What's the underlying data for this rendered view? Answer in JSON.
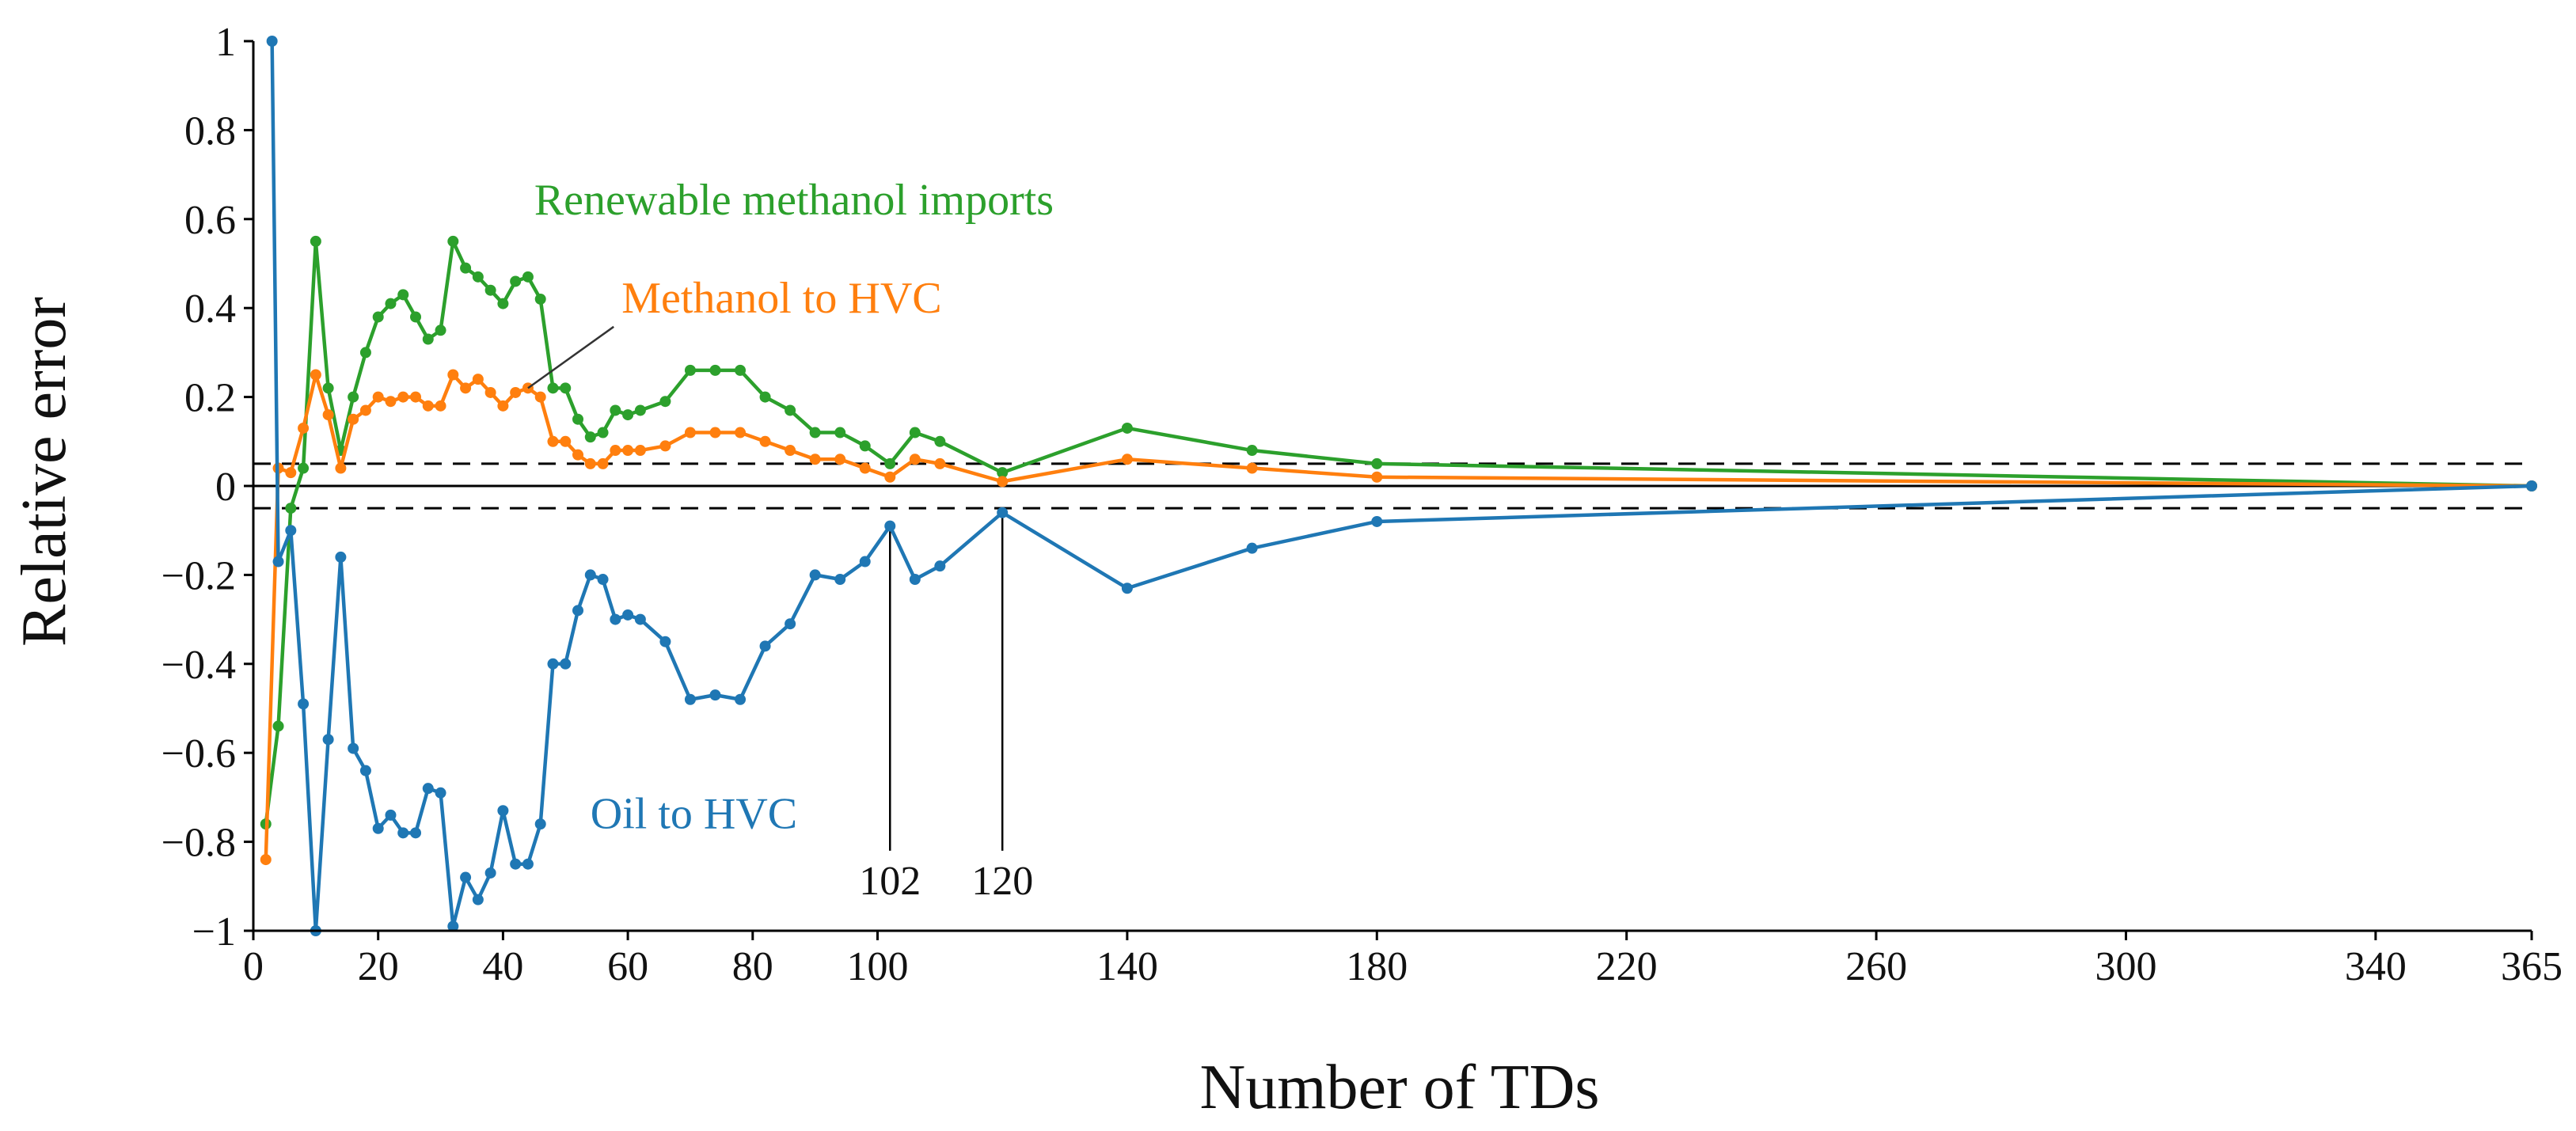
{
  "chart_data": {
    "type": "line",
    "title": "",
    "xlabel": "Number of TDs",
    "ylabel": "Relative error",
    "xlim": [
      0,
      365
    ],
    "ylim": [
      -1,
      1
    ],
    "x_ticks": [
      0,
      20,
      40,
      60,
      80,
      100,
      140,
      180,
      220,
      260,
      300,
      340,
      365
    ],
    "x_tick_labels": [
      "0",
      "20",
      "40",
      "60",
      "80",
      "100",
      "140",
      "180",
      "220",
      "260",
      "300",
      "340",
      "365"
    ],
    "y_ticks": [
      -1,
      -0.8,
      -0.6,
      -0.4,
      -0.2,
      0,
      0.2,
      0.4,
      0.6,
      0.8,
      1
    ],
    "y_tick_labels": [
      "−1",
      "−0.8",
      "−0.6",
      "−0.4",
      "−0.2",
      "0",
      "0.2",
      "0.4",
      "0.6",
      "0.8",
      "1"
    ],
    "reference_lines": [
      {
        "y": 0.05,
        "style": "dashed"
      },
      {
        "y": 0,
        "style": "solid"
      },
      {
        "y": -0.05,
        "style": "dashed"
      }
    ],
    "vertical_markers": [
      {
        "x": 102,
        "label": "102"
      },
      {
        "x": 120,
        "label": "120"
      }
    ],
    "series": [
      {
        "name": "Renewable methanol imports",
        "color": "#2ca02c",
        "x": [
          2,
          4,
          6,
          8,
          10,
          12,
          14,
          16,
          18,
          20,
          22,
          24,
          26,
          28,
          30,
          32,
          34,
          36,
          38,
          40,
          42,
          44,
          46,
          48,
          50,
          52,
          54,
          56,
          58,
          60,
          62,
          66,
          70,
          74,
          78,
          82,
          86,
          90,
          94,
          98,
          102,
          106,
          110,
          120,
          140,
          160,
          180,
          365
        ],
        "values": [
          -0.76,
          -0.54,
          -0.05,
          0.04,
          0.55,
          0.22,
          0.08,
          0.2,
          0.3,
          0.38,
          0.41,
          0.43,
          0.38,
          0.33,
          0.35,
          0.55,
          0.49,
          0.47,
          0.44,
          0.41,
          0.46,
          0.47,
          0.42,
          0.22,
          0.22,
          0.15,
          0.11,
          0.12,
          0.17,
          0.16,
          0.17,
          0.19,
          0.26,
          0.26,
          0.26,
          0.2,
          0.17,
          0.12,
          0.12,
          0.09,
          0.05,
          0.12,
          0.1,
          0.03,
          0.13,
          0.08,
          0.05,
          0.0
        ]
      },
      {
        "name": "Methanol to HVC",
        "color": "#ff7f0e",
        "x": [
          2,
          4,
          6,
          8,
          10,
          12,
          14,
          16,
          18,
          20,
          22,
          24,
          26,
          28,
          30,
          32,
          34,
          36,
          38,
          40,
          42,
          44,
          46,
          48,
          50,
          52,
          54,
          56,
          58,
          60,
          62,
          66,
          70,
          74,
          78,
          82,
          86,
          90,
          94,
          98,
          102,
          106,
          110,
          120,
          140,
          160,
          180,
          365
        ],
        "values": [
          -0.84,
          0.04,
          0.03,
          0.13,
          0.25,
          0.16,
          0.04,
          0.15,
          0.17,
          0.2,
          0.19,
          0.2,
          0.2,
          0.18,
          0.18,
          0.25,
          0.22,
          0.24,
          0.21,
          0.18,
          0.21,
          0.22,
          0.2,
          0.1,
          0.1,
          0.07,
          0.05,
          0.05,
          0.08,
          0.08,
          0.08,
          0.09,
          0.12,
          0.12,
          0.12,
          0.1,
          0.08,
          0.06,
          0.06,
          0.04,
          0.02,
          0.06,
          0.05,
          0.01,
          0.06,
          0.04,
          0.02,
          0.0
        ]
      },
      {
        "name": "Oil to HVC",
        "color": "#1f77b4",
        "x": [
          3,
          4,
          6,
          8,
          10,
          12,
          14,
          16,
          18,
          20,
          22,
          24,
          26,
          28,
          30,
          32,
          34,
          36,
          38,
          40,
          42,
          44,
          46,
          48,
          50,
          52,
          54,
          56,
          58,
          60,
          62,
          66,
          70,
          74,
          78,
          82,
          86,
          90,
          94,
          98,
          102,
          106,
          110,
          120,
          140,
          160,
          180,
          365
        ],
        "values": [
          1.0,
          -0.17,
          -0.1,
          -0.49,
          -1.0,
          -0.57,
          -0.16,
          -0.59,
          -0.64,
          -0.77,
          -0.74,
          -0.78,
          -0.78,
          -0.68,
          -0.69,
          -0.99,
          -0.88,
          -0.93,
          -0.87,
          -0.73,
          -0.85,
          -0.85,
          -0.76,
          -0.4,
          -0.4,
          -0.28,
          -0.2,
          -0.21,
          -0.3,
          -0.29,
          -0.3,
          -0.35,
          -0.48,
          -0.47,
          -0.48,
          -0.36,
          -0.31,
          -0.2,
          -0.21,
          -0.17,
          -0.09,
          -0.21,
          -0.18,
          -0.06,
          -0.23,
          -0.14,
          -0.08,
          0.0
        ]
      }
    ],
    "series_labels": [
      {
        "text": "Renewable methanol imports",
        "color": "#2ca02c",
        "anchor_x": 45,
        "anchor_y": 0.61
      },
      {
        "text": "Methanol to HVC",
        "color": "#ff7f0e",
        "anchor_x": 59,
        "anchor_y": 0.39,
        "leader_to_x": 44,
        "leader_to_y": 0.22
      },
      {
        "text": "Oil to HVC",
        "color": "#1f77b4",
        "anchor_x": 54,
        "anchor_y": -0.77
      }
    ],
    "grid": false,
    "legend": "none"
  }
}
